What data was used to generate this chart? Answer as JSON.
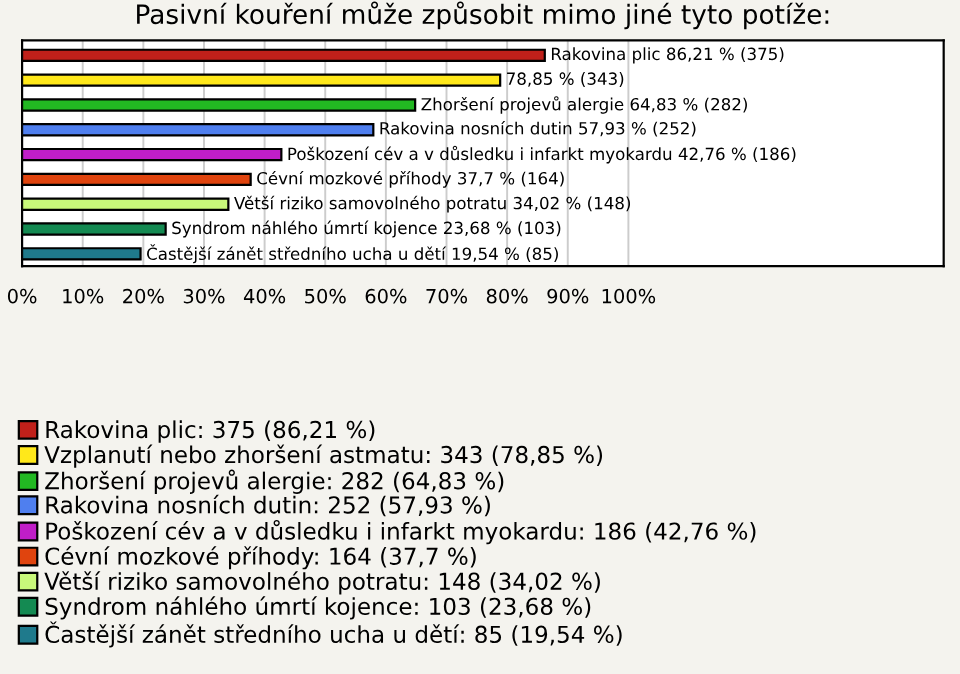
{
  "chart_data": {
    "type": "bar",
    "orientation": "horizontal",
    "title": "Pasivní kouření může způsobit mimo jiné tyto potíže:",
    "categories": [
      null,
      null,
      null,
      null,
      null,
      null,
      null,
      null,
      null
    ],
    "series": [
      {
        "name": "Rakovina plic: 375 (86,21 %)",
        "color": "#c0201a",
        "values": [
          86.21,
          null,
          null,
          null,
          null,
          null,
          null,
          null,
          null
        ],
        "value_labels": [
          "Rakovina plic 86,21 % (375)",
          null,
          null,
          null,
          null,
          null,
          null,
          null,
          null
        ]
      },
      {
        "name": "Vzplanutí nebo zhoršení astmatu: 343 (78,85 %)",
        "color": "#ffe81a",
        "values": [
          null,
          78.85,
          null,
          null,
          null,
          null,
          null,
          null,
          null
        ],
        "value_labels": [
          null,
          "78,85 % (343)",
          null,
          null,
          null,
          null,
          null,
          null,
          null
        ]
      },
      {
        "name": "Zhoršení projevů alergie: 282 (64,83 %)",
        "color": "#22b822",
        "values": [
          null,
          null,
          64.83,
          null,
          null,
          null,
          null,
          null,
          null
        ],
        "value_labels": [
          null,
          null,
          "Zhoršení projevů alergie 64,83 % (282)",
          null,
          null,
          null,
          null,
          null,
          null
        ]
      },
      {
        "name": "Rakovina nosních dutin: 252 (57,93 %)",
        "color": "#4f7fef",
        "values": [
          null,
          null,
          null,
          57.93,
          null,
          null,
          null,
          null,
          null
        ],
        "value_labels": [
          null,
          null,
          null,
          "Rakovina nosních dutin 57,93 % (252)",
          null,
          null,
          null,
          null,
          null
        ]
      },
      {
        "name": "Poškození cév a v důsledku i infarkt myokardu: 186 (42,76 %)",
        "color": "#c01ec8",
        "values": [
          null,
          null,
          null,
          null,
          42.76,
          null,
          null,
          null,
          null
        ],
        "value_labels": [
          null,
          null,
          null,
          null,
          "Poškození cév a v důsledku i infarkt myokardu 42,76 % (186)",
          null,
          null,
          null,
          null
        ]
      },
      {
        "name": "Cévní mozkové příhody: 164 (37,7 %)",
        "color": "#e0440e",
        "values": [
          null,
          null,
          null,
          null,
          null,
          37.7,
          null,
          null,
          null
        ],
        "value_labels": [
          null,
          null,
          null,
          null,
          null,
          "Cévní mozkové příhody 37,7 % (164)",
          null,
          null,
          null
        ]
      },
      {
        "name": "Větší riziko samovolného potratu: 148 (34,02 %)",
        "color": "#c8f87a",
        "values": [
          null,
          null,
          null,
          null,
          null,
          null,
          34.02,
          null,
          null
        ],
        "value_labels": [
          null,
          null,
          null,
          null,
          null,
          null,
          "Větší riziko samovolného potratu 34,02 % (148)",
          null,
          null
        ]
      },
      {
        "name": "Syndrom náhlého úmrtí kojence: 103 (23,68 %)",
        "color": "#148a52",
        "values": [
          null,
          null,
          null,
          null,
          null,
          null,
          null,
          23.68,
          null
        ],
        "value_labels": [
          null,
          null,
          null,
          null,
          null,
          null,
          null,
          "Syndrom náhlého úmrtí kojence 23,68 % (103)",
          null
        ]
      },
      {
        "name": "Častější zánět středního ucha u dětí: 85 (19,54 %)",
        "color": "#1f7a8c",
        "values": [
          null,
          null,
          null,
          null,
          null,
          null,
          null,
          null,
          19.54
        ],
        "value_labels": [
          null,
          null,
          null,
          null,
          null,
          null,
          null,
          null,
          "Častější zánět středního ucha u dětí 19,54 % (85)"
        ]
      }
    ],
    "xlim": [
      0,
      152
    ],
    "xticks": [
      {
        "value": 0,
        "label": "0%"
      },
      {
        "value": 10,
        "label": "10%"
      },
      {
        "value": 20,
        "label": "20%"
      },
      {
        "value": 30,
        "label": "30%"
      },
      {
        "value": 40,
        "label": "40%"
      },
      {
        "value": 50,
        "label": "50%"
      },
      {
        "value": 60,
        "label": "60%"
      },
      {
        "value": 70,
        "label": "70%"
      },
      {
        "value": 80,
        "label": "80%"
      },
      {
        "value": 90,
        "label": "90%"
      },
      {
        "value": 100,
        "label": "100%"
      }
    ],
    "grid": "x",
    "legend": "bottom"
  }
}
